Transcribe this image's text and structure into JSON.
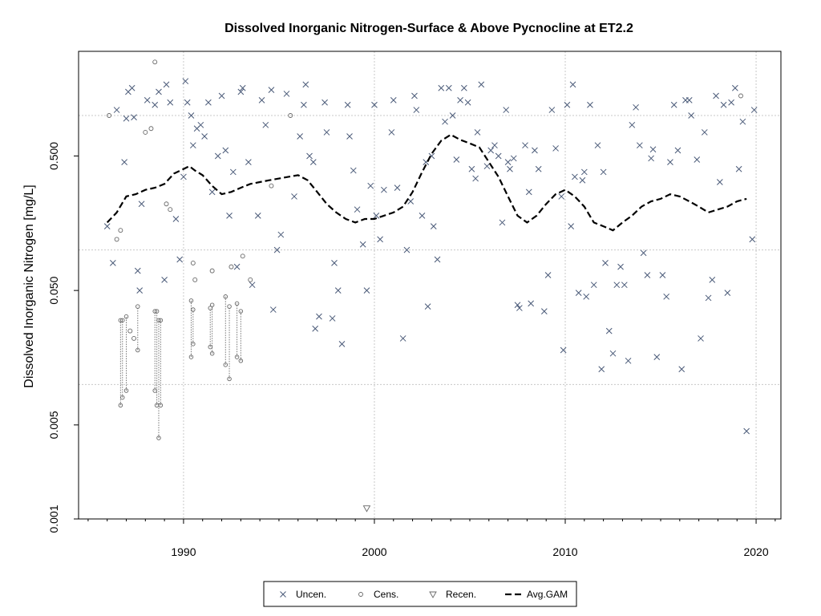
{
  "chart_data": {
    "type": "scatter",
    "title": "Dissolved Inorganic Nitrogen-Surface & Above Pycnocline at ET2.2",
    "xlabel": "",
    "ylabel": "Dissolved Inorganic Nitrogen [mg/L]",
    "y_scale": "log",
    "xlim": [
      1984.5,
      2021.3
    ],
    "ylim": [
      0.001,
      3.0
    ],
    "x_ticks": [
      {
        "value": 1990,
        "label": "1990"
      },
      {
        "value": 2000,
        "label": "2000"
      },
      {
        "value": 2010,
        "label": "2010"
      },
      {
        "value": 2020,
        "label": "2020"
      }
    ],
    "y_ticks": [
      {
        "value": 0.001,
        "label": "0.001"
      },
      {
        "value": 0.005,
        "label": "0.005"
      },
      {
        "value": 0.05,
        "label": "0.050"
      },
      {
        "value": 0.5,
        "label": "0.500"
      }
    ],
    "grid": true,
    "grid_x": [
      1990,
      2000,
      2010,
      2020
    ],
    "grid_y": [
      0.01,
      0.1,
      1.0
    ],
    "legend_position": "bottom",
    "legend": [
      {
        "label": "Uncen.",
        "marker": "x"
      },
      {
        "label": "Cens.",
        "marker": "circle"
      },
      {
        "label": "Recen.",
        "marker": "triangle-down"
      },
      {
        "label": "Avg.GAM",
        "marker": "dashed-line"
      }
    ],
    "colors": {
      "points": "#4a5a78",
      "censored": "#666666",
      "gam": "#000000",
      "grid": "#c8c8c8"
    },
    "series": [
      {
        "name": "Uncen.",
        "marker": "x",
        "points": [
          [
            1986.0,
            0.15
          ],
          [
            1986.3,
            0.08
          ],
          [
            1986.5,
            1.1
          ],
          [
            1986.9,
            0.45
          ],
          [
            1987.0,
            0.95
          ],
          [
            1987.1,
            1.5
          ],
          [
            1987.3,
            1.6
          ],
          [
            1987.4,
            0.97
          ],
          [
            1987.6,
            0.07
          ],
          [
            1987.7,
            0.05
          ],
          [
            1987.8,
            0.22
          ],
          [
            1988.1,
            1.3
          ],
          [
            1988.5,
            1.2
          ],
          [
            1988.7,
            1.5
          ],
          [
            1989.0,
            0.06
          ],
          [
            1989.1,
            1.7
          ],
          [
            1989.3,
            1.25
          ],
          [
            1989.6,
            0.17
          ],
          [
            1989.8,
            0.085
          ],
          [
            1990.0,
            0.35
          ],
          [
            1990.1,
            1.8
          ],
          [
            1990.2,
            1.25
          ],
          [
            1990.4,
            1.0
          ],
          [
            1990.5,
            0.6
          ],
          [
            1990.7,
            0.8
          ],
          [
            1990.9,
            0.85
          ],
          [
            1991.1,
            0.7
          ],
          [
            1991.3,
            1.25
          ],
          [
            1991.5,
            0.27
          ],
          [
            1991.8,
            0.5
          ],
          [
            1992.0,
            1.4
          ],
          [
            1992.2,
            0.55
          ],
          [
            1992.4,
            0.18
          ],
          [
            1992.6,
            0.38
          ],
          [
            1992.8,
            0.075
          ],
          [
            1993.0,
            1.5
          ],
          [
            1993.1,
            1.6
          ],
          [
            1993.4,
            0.45
          ],
          [
            1993.6,
            0.055
          ],
          [
            1993.9,
            0.18
          ],
          [
            1994.1,
            1.3
          ],
          [
            1994.3,
            0.85
          ],
          [
            1994.6,
            1.55
          ],
          [
            1994.7,
            0.036
          ],
          [
            1994.9,
            0.1
          ],
          [
            1995.1,
            0.13
          ],
          [
            1995.4,
            1.45
          ],
          [
            1995.8,
            0.25
          ],
          [
            1996.1,
            0.7
          ],
          [
            1996.3,
            1.2
          ],
          [
            1996.4,
            1.7
          ],
          [
            1996.6,
            0.5
          ],
          [
            1996.8,
            0.45
          ],
          [
            1996.9,
            0.026
          ],
          [
            1997.1,
            0.032
          ],
          [
            1997.4,
            1.25
          ],
          [
            1997.5,
            0.75
          ],
          [
            1997.8,
            0.031
          ],
          [
            1997.9,
            0.08
          ],
          [
            1998.1,
            0.05
          ],
          [
            1998.3,
            0.02
          ],
          [
            1998.6,
            1.2
          ],
          [
            1998.7,
            0.7
          ],
          [
            1998.9,
            0.39
          ],
          [
            1999.1,
            0.2
          ],
          [
            1999.4,
            0.11
          ],
          [
            1999.6,
            0.05
          ],
          [
            1999.8,
            0.3
          ],
          [
            2000.0,
            1.2
          ],
          [
            2000.1,
            0.18
          ],
          [
            2000.3,
            0.12
          ],
          [
            2000.5,
            0.28
          ],
          [
            2000.9,
            0.75
          ],
          [
            2001.0,
            1.3
          ],
          [
            2001.2,
            0.29
          ],
          [
            2001.5,
            0.022
          ],
          [
            2001.7,
            0.1
          ],
          [
            2001.9,
            0.23
          ],
          [
            2002.1,
            1.4
          ],
          [
            2002.2,
            1.1
          ],
          [
            2002.5,
            0.18
          ],
          [
            2002.7,
            0.45
          ],
          [
            2002.8,
            0.038
          ],
          [
            2003.0,
            0.5
          ],
          [
            2003.1,
            0.15
          ],
          [
            2003.3,
            0.085
          ],
          [
            2003.5,
            1.6
          ],
          [
            2003.7,
            0.9
          ],
          [
            2003.9,
            1.6
          ],
          [
            2004.1,
            1.0
          ],
          [
            2004.3,
            0.47
          ],
          [
            2004.5,
            1.3
          ],
          [
            2004.7,
            1.6
          ],
          [
            2004.9,
            1.25
          ],
          [
            2005.1,
            0.4
          ],
          [
            2005.3,
            0.34
          ],
          [
            2005.4,
            0.75
          ],
          [
            2005.6,
            1.7
          ],
          [
            2005.9,
            0.42
          ],
          [
            2006.1,
            0.55
          ],
          [
            2006.3,
            0.6
          ],
          [
            2006.5,
            0.5
          ],
          [
            2006.7,
            0.16
          ],
          [
            2006.9,
            1.1
          ],
          [
            2007.0,
            0.45
          ],
          [
            2007.1,
            0.4
          ],
          [
            2007.3,
            0.48
          ],
          [
            2007.5,
            0.039
          ],
          [
            2007.6,
            0.037
          ],
          [
            2007.9,
            0.6
          ],
          [
            2008.1,
            0.27
          ],
          [
            2008.2,
            0.04
          ],
          [
            2008.4,
            0.55
          ],
          [
            2008.6,
            0.4
          ],
          [
            2008.9,
            0.035
          ],
          [
            2009.1,
            0.065
          ],
          [
            2009.3,
            1.1
          ],
          [
            2009.5,
            0.57
          ],
          [
            2009.8,
            0.25
          ],
          [
            2009.9,
            0.018
          ],
          [
            2010.1,
            1.2
          ],
          [
            2010.3,
            0.15
          ],
          [
            2010.4,
            1.7
          ],
          [
            2010.5,
            0.35
          ],
          [
            2010.7,
            0.048
          ],
          [
            2010.9,
            0.33
          ],
          [
            2011.0,
            0.38
          ],
          [
            2011.1,
            0.045
          ],
          [
            2011.3,
            1.2
          ],
          [
            2011.5,
            0.055
          ],
          [
            2011.7,
            0.6
          ],
          [
            2011.9,
            0.013
          ],
          [
            2012.0,
            0.38
          ],
          [
            2012.1,
            0.08
          ],
          [
            2012.3,
            0.025
          ],
          [
            2012.5,
            0.017
          ],
          [
            2012.7,
            0.055
          ],
          [
            2012.9,
            0.075
          ],
          [
            2013.1,
            0.055
          ],
          [
            2013.3,
            0.015
          ],
          [
            2013.5,
            0.85
          ],
          [
            2013.7,
            1.15
          ],
          [
            2013.9,
            0.6
          ],
          [
            2014.1,
            0.095
          ],
          [
            2014.3,
            0.065
          ],
          [
            2014.5,
            0.48
          ],
          [
            2014.6,
            0.56
          ],
          [
            2014.8,
            0.016
          ],
          [
            2015.1,
            0.065
          ],
          [
            2015.3,
            0.045
          ],
          [
            2015.5,
            0.45
          ],
          [
            2015.7,
            1.2
          ],
          [
            2015.9,
            0.55
          ],
          [
            2016.1,
            0.013
          ],
          [
            2016.3,
            1.3
          ],
          [
            2016.5,
            1.3
          ],
          [
            2016.6,
            1.0
          ],
          [
            2016.9,
            0.47
          ],
          [
            2017.1,
            0.022
          ],
          [
            2017.3,
            0.75
          ],
          [
            2017.5,
            0.044
          ],
          [
            2017.7,
            0.06
          ],
          [
            2017.9,
            1.4
          ],
          [
            2018.1,
            0.32
          ],
          [
            2018.3,
            1.2
          ],
          [
            2018.5,
            0.048
          ],
          [
            2018.7,
            1.25
          ],
          [
            2018.9,
            1.6
          ],
          [
            2019.1,
            0.4
          ],
          [
            2019.3,
            0.9
          ],
          [
            2019.5,
            0.0045
          ],
          [
            2019.8,
            0.12
          ],
          [
            2019.9,
            1.1
          ]
        ]
      },
      {
        "name": "Cens.",
        "marker": "circle",
        "points": [
          [
            1986.1,
            1.0
          ],
          [
            1986.5,
            0.12
          ],
          [
            1986.7,
            0.14
          ],
          [
            1987.2,
            0.025
          ],
          [
            1987.4,
            0.022
          ],
          [
            1988.0,
            0.75
          ],
          [
            1988.3,
            0.8
          ],
          [
            1988.5,
            2.5
          ],
          [
            1989.1,
            0.22
          ],
          [
            1989.3,
            0.2
          ],
          [
            1990.5,
            0.08
          ],
          [
            1990.6,
            0.06
          ],
          [
            1991.5,
            0.07
          ],
          [
            1992.5,
            0.075
          ],
          [
            1993.1,
            0.09
          ],
          [
            1993.5,
            0.06
          ],
          [
            1994.6,
            0.3
          ],
          [
            1995.6,
            1.0
          ],
          [
            2019.2,
            1.4
          ]
        ]
      },
      {
        "name": "Recen.",
        "marker": "triangle-down",
        "points": [
          [
            1999.6,
            0.0012
          ]
        ]
      }
    ],
    "censored_intervals": [
      [
        1986.7,
        0.007,
        0.03
      ],
      [
        1986.8,
        0.008,
        0.03
      ],
      [
        1987.0,
        0.009,
        0.032
      ],
      [
        1987.6,
        0.018,
        0.038
      ],
      [
        1988.5,
        0.009,
        0.035
      ],
      [
        1988.6,
        0.007,
        0.035
      ],
      [
        1988.7,
        0.004,
        0.03
      ],
      [
        1988.8,
        0.007,
        0.03
      ],
      [
        1990.4,
        0.016,
        0.042
      ],
      [
        1990.5,
        0.02,
        0.036
      ],
      [
        1991.4,
        0.019,
        0.037
      ],
      [
        1991.5,
        0.017,
        0.039
      ],
      [
        1992.2,
        0.014,
        0.045
      ],
      [
        1992.4,
        0.011,
        0.038
      ],
      [
        1992.8,
        0.016,
        0.04
      ],
      [
        1993.0,
        0.015,
        0.035
      ]
    ],
    "gam_line": [
      [
        1986.0,
        0.16
      ],
      [
        1986.5,
        0.19
      ],
      [
        1987.0,
        0.25
      ],
      [
        1987.5,
        0.26
      ],
      [
        1988.0,
        0.28
      ],
      [
        1988.5,
        0.29
      ],
      [
        1989.0,
        0.31
      ],
      [
        1989.5,
        0.37
      ],
      [
        1990.0,
        0.4
      ],
      [
        1990.3,
        0.42
      ],
      [
        1990.6,
        0.39
      ],
      [
        1991.0,
        0.36
      ],
      [
        1991.5,
        0.3
      ],
      [
        1992.0,
        0.26
      ],
      [
        1992.5,
        0.27
      ],
      [
        1993.0,
        0.29
      ],
      [
        1993.5,
        0.31
      ],
      [
        1994.0,
        0.32
      ],
      [
        1994.5,
        0.33
      ],
      [
        1995.0,
        0.34
      ],
      [
        1995.5,
        0.35
      ],
      [
        1996.0,
        0.36
      ],
      [
        1996.5,
        0.33
      ],
      [
        1997.0,
        0.27
      ],
      [
        1997.5,
        0.22
      ],
      [
        1998.0,
        0.19
      ],
      [
        1998.5,
        0.17
      ],
      [
        1999.0,
        0.16
      ],
      [
        1999.5,
        0.17
      ],
      [
        2000.0,
        0.17
      ],
      [
        2000.5,
        0.18
      ],
      [
        2001.0,
        0.19
      ],
      [
        2001.5,
        0.21
      ],
      [
        2002.0,
        0.27
      ],
      [
        2002.5,
        0.38
      ],
      [
        2003.0,
        0.52
      ],
      [
        2003.5,
        0.65
      ],
      [
        2004.0,
        0.72
      ],
      [
        2004.5,
        0.66
      ],
      [
        2005.0,
        0.62
      ],
      [
        2005.5,
        0.58
      ],
      [
        2006.0,
        0.45
      ],
      [
        2006.5,
        0.35
      ],
      [
        2007.0,
        0.25
      ],
      [
        2007.5,
        0.18
      ],
      [
        2008.0,
        0.16
      ],
      [
        2008.5,
        0.18
      ],
      [
        2009.0,
        0.22
      ],
      [
        2009.5,
        0.26
      ],
      [
        2010.0,
        0.28
      ],
      [
        2010.5,
        0.25
      ],
      [
        2011.0,
        0.21
      ],
      [
        2011.5,
        0.16
      ],
      [
        2012.0,
        0.15
      ],
      [
        2012.5,
        0.14
      ],
      [
        2013.0,
        0.16
      ],
      [
        2013.5,
        0.18
      ],
      [
        2014.0,
        0.21
      ],
      [
        2014.5,
        0.23
      ],
      [
        2015.0,
        0.24
      ],
      [
        2015.5,
        0.26
      ],
      [
        2016.0,
        0.25
      ],
      [
        2016.5,
        0.23
      ],
      [
        2017.0,
        0.21
      ],
      [
        2017.5,
        0.19
      ],
      [
        2018.0,
        0.2
      ],
      [
        2018.5,
        0.21
      ],
      [
        2019.0,
        0.23
      ],
      [
        2019.5,
        0.24
      ]
    ]
  }
}
